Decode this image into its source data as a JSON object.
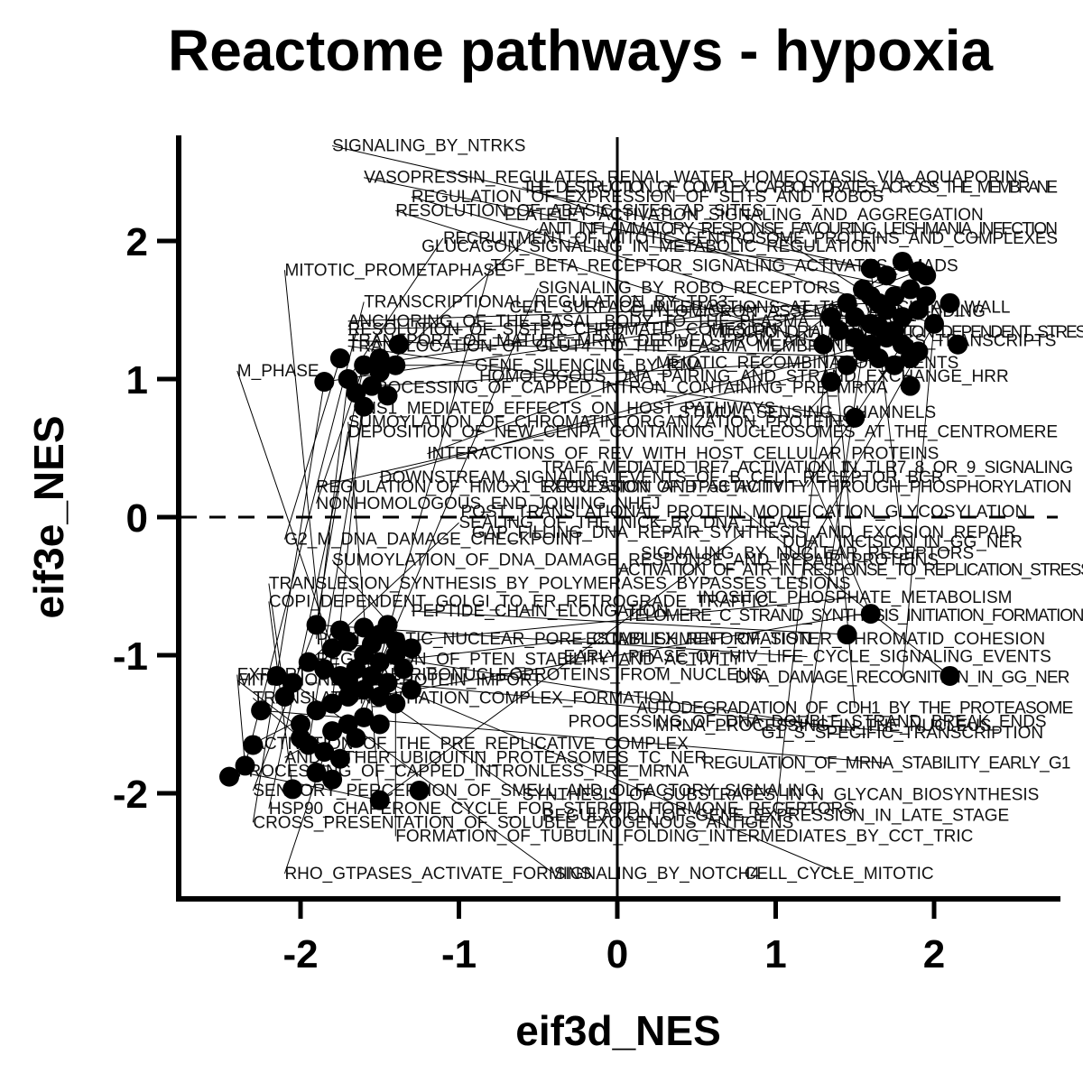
{
  "chart_data": {
    "type": "scatter",
    "title": "Reactome pathways - hypoxia",
    "xlabel": "eif3d_NES",
    "ylabel": "eif3e_NES",
    "xlim": [
      -2.75,
      2.75
    ],
    "ylim": [
      -2.75,
      2.75
    ],
    "x_ticks": [
      "-2",
      "-1",
      "0",
      "1",
      "2"
    ],
    "y_ticks": [
      "-2",
      "-1",
      "0",
      "1",
      "2"
    ],
    "reference_lines": {
      "x": 0,
      "y": 0,
      "y_style": "dashed"
    },
    "grid": false,
    "legend": "none",
    "colors": {
      "points": "#000000",
      "text": "#111111",
      "axes": "#000000"
    },
    "points": [
      {
        "x": 1.6,
        "y": 1.8
      },
      {
        "x": 1.7,
        "y": 1.75
      },
      {
        "x": 1.8,
        "y": 1.85
      },
      {
        "x": 1.9,
        "y": 1.78
      },
      {
        "x": 1.55,
        "y": 1.65
      },
      {
        "x": 1.65,
        "y": 1.55
      },
      {
        "x": 1.75,
        "y": 1.6
      },
      {
        "x": 1.85,
        "y": 1.65
      },
      {
        "x": 1.95,
        "y": 1.6
      },
      {
        "x": 1.5,
        "y": 1.45
      },
      {
        "x": 1.6,
        "y": 1.4
      },
      {
        "x": 1.7,
        "y": 1.5
      },
      {
        "x": 1.8,
        "y": 1.45
      },
      {
        "x": 1.9,
        "y": 1.5
      },
      {
        "x": 2.0,
        "y": 1.4
      },
      {
        "x": 1.4,
        "y": 1.35
      },
      {
        "x": 1.5,
        "y": 1.3
      },
      {
        "x": 1.6,
        "y": 1.25
      },
      {
        "x": 1.7,
        "y": 1.3
      },
      {
        "x": 1.8,
        "y": 1.25
      },
      {
        "x": 1.9,
        "y": 1.2
      },
      {
        "x": 1.35,
        "y": 1.45
      },
      {
        "x": 1.45,
        "y": 1.55
      },
      {
        "x": 1.55,
        "y": 1.2
      },
      {
        "x": 1.65,
        "y": 1.15
      },
      {
        "x": 1.75,
        "y": 1.1
      },
      {
        "x": 1.85,
        "y": 1.15
      },
      {
        "x": 1.45,
        "y": 1.1
      },
      {
        "x": 1.3,
        "y": 1.25
      },
      {
        "x": 2.1,
        "y": 1.55
      },
      {
        "x": 2.15,
        "y": 1.25
      },
      {
        "x": 1.85,
        "y": 0.95
      },
      {
        "x": 1.35,
        "y": 0.98
      },
      {
        "x": 1.5,
        "y": 0.72
      },
      {
        "x": 1.95,
        "y": 1.75
      },
      {
        "x": 1.6,
        "y": 1.6
      },
      {
        "x": 1.75,
        "y": 1.35
      },
      {
        "x": 1.65,
        "y": 1.38
      },
      {
        "x": -1.6,
        "y": 1.1
      },
      {
        "x": -1.5,
        "y": 1.05
      },
      {
        "x": -1.4,
        "y": 1.1
      },
      {
        "x": -1.55,
        "y": 0.95
      },
      {
        "x": -1.65,
        "y": 0.9
      },
      {
        "x": -1.45,
        "y": 0.88
      },
      {
        "x": -1.75,
        "y": 1.15
      },
      {
        "x": -1.85,
        "y": 0.98
      },
      {
        "x": -1.38,
        "y": 1.25
      },
      {
        "x": -1.6,
        "y": 0.8
      },
      {
        "x": -1.5,
        "y": 1.15
      },
      {
        "x": -1.7,
        "y": 1.0
      },
      {
        "x": -1.6,
        "y": -0.8
      },
      {
        "x": -1.5,
        "y": -0.85
      },
      {
        "x": -1.4,
        "y": -0.9
      },
      {
        "x": -1.7,
        "y": -0.9
      },
      {
        "x": -1.8,
        "y": -0.95
      },
      {
        "x": -1.6,
        "y": -1.0
      },
      {
        "x": -1.5,
        "y": -1.05
      },
      {
        "x": -1.4,
        "y": -1.0
      },
      {
        "x": -1.3,
        "y": -0.95
      },
      {
        "x": -1.65,
        "y": -1.1
      },
      {
        "x": -1.55,
        "y": -1.15
      },
      {
        "x": -1.45,
        "y": -1.2
      },
      {
        "x": -1.75,
        "y": -1.15
      },
      {
        "x": -1.85,
        "y": -1.1
      },
      {
        "x": -1.6,
        "y": -1.25
      },
      {
        "x": -1.7,
        "y": -1.3
      },
      {
        "x": -1.5,
        "y": -1.3
      },
      {
        "x": -1.4,
        "y": -1.35
      },
      {
        "x": -1.8,
        "y": -1.35
      },
      {
        "x": -1.9,
        "y": -1.4
      },
      {
        "x": -1.6,
        "y": -1.45
      },
      {
        "x": -1.7,
        "y": -1.5
      },
      {
        "x": -1.5,
        "y": -1.5
      },
      {
        "x": -1.8,
        "y": -1.55
      },
      {
        "x": -2.0,
        "y": -1.5
      },
      {
        "x": -1.95,
        "y": -1.65
      },
      {
        "x": -1.85,
        "y": -1.7
      },
      {
        "x": -1.75,
        "y": -1.75
      },
      {
        "x": -1.65,
        "y": -1.6
      },
      {
        "x": -2.1,
        "y": -1.3
      },
      {
        "x": -2.05,
        "y": -1.2
      },
      {
        "x": -2.15,
        "y": -1.15
      },
      {
        "x": -2.25,
        "y": -1.4
      },
      {
        "x": -2.3,
        "y": -1.65
      },
      {
        "x": -2.35,
        "y": -1.8
      },
      {
        "x": -2.45,
        "y": -1.88
      },
      {
        "x": -2.05,
        "y": -1.97
      },
      {
        "x": -1.9,
        "y": -1.85
      },
      {
        "x": -1.8,
        "y": -1.9
      },
      {
        "x": -1.5,
        "y": -2.05
      },
      {
        "x": -1.25,
        "y": -1.98
      },
      {
        "x": -1.55,
        "y": -0.92
      },
      {
        "x": -1.45,
        "y": -0.78
      },
      {
        "x": -1.35,
        "y": -1.1
      },
      {
        "x": -1.3,
        "y": -1.25
      },
      {
        "x": -1.95,
        "y": -1.05
      },
      {
        "x": -1.9,
        "y": -0.78
      },
      {
        "x": -1.75,
        "y": -0.82
      },
      {
        "x": -2.0,
        "y": -1.6
      },
      {
        "x": -1.7,
        "y": -1.2
      },
      {
        "x": 1.45,
        "y": -0.85
      },
      {
        "x": 1.6,
        "y": -0.7
      },
      {
        "x": 2.1,
        "y": -1.15
      }
    ],
    "point_labels": [
      {
        "text": "SIGNALING_BY_NTRKS",
        "x": -1.8,
        "y": 2.65
      },
      {
        "text": "VASOPRESSIN_REGULATES_RENAL_WATER_HOMEOSTASIS_VIA_AQUAPORINS",
        "x": -1.6,
        "y": 2.42
      },
      {
        "text": "THE_DESTRUCTION_OF_COMPLEX_CARBOHYDRATES_ACROSS_THE_MEMBRANE",
        "x": -0.6,
        "y": 2.35
      },
      {
        "text": "REGULATION_OF_EXPRESSION_OF_SLITS_AND_ROBOS",
        "x": -1.3,
        "y": 2.28
      },
      {
        "text": "RESOLUTION_OF_ABASIC_SITES_AP_SITES",
        "x": -1.4,
        "y": 2.18
      },
      {
        "text": "PLATELET_ACTIVATION_SIGNALING_AND_AGGREGATION",
        "x": 0.8,
        "y": 2.15
      },
      {
        "text": "ANTI_INFLAMMATORY_RESPONSE_FAVOURING_LEISHMANIA_INFECTION",
        "x": -0.5,
        "y": 2.05
      },
      {
        "text": "RECRUITMENT_OF_MITOTIC_CENTROSOME_PROTEINS_AND_COMPLEXES",
        "x": -1.1,
        "y": 1.98
      },
      {
        "text": "GLUCAGON_SIGNALING_IN_METABOLIC_REGULATION",
        "x": 0.2,
        "y": 1.92
      },
      {
        "text": "MITOTIC_PROMETAPHASE",
        "x": -2.1,
        "y": 1.75
      },
      {
        "text": "TGF_BETA_RECEPTOR_SIGNALING_ACTIVATES_SMADS",
        "x": -0.8,
        "y": 1.78
      },
      {
        "text": "SIGNALING_BY_ROBO_RECEPTORS",
        "x": -0.5,
        "y": 1.62
      },
      {
        "text": "TRANSCRIPTIONAL_REGULATION_BY_TP53",
        "x": -1.6,
        "y": 1.52
      },
      {
        "text": "CELL_SURFACE_INTERACTIONS_AT_THE_VASCULAR_WALL",
        "x": 0.9,
        "y": 1.48
      },
      {
        "text": "CHYLOMICRON_ASSEMBLY_AND_BINDING",
        "x": 1.2,
        "y": 1.45
      },
      {
        "text": "ANCHORING_OF_THE_BASAL_BODY_TO_THE_PLASMA_MEMBRANE",
        "x": -1.7,
        "y": 1.38
      },
      {
        "text": "RESOLUTION_OF_SISTER_CHROMATID_COHESION",
        "x": -1.7,
        "y": 1.32
      },
      {
        "text": "MITOCHONDRIAL_TRANSLATION_DEPENDENT_STRESS",
        "x": 1.8,
        "y": 1.3
      },
      {
        "text": "TRANSPORT_OF_MATURE_MRNA_DERIVED_FROM_AN_INTRONLESS_TRANSCRIPTS",
        "x": -1.7,
        "y": 1.24
      },
      {
        "text": "TRANSLOCATION_OF_GLUT4_TO_THE_PLASMA_MEMBRANE",
        "x": -1.7,
        "y": 1.2
      },
      {
        "text": "GENE_SILENCING_BY_RNA",
        "x": -0.9,
        "y": 1.06
      },
      {
        "text": "MEIOTIC_RECOMBINATION_EVENTS",
        "x": 1.2,
        "y": 1.08
      },
      {
        "text": "M_PHASE",
        "x": -2.4,
        "y": 1.02
      },
      {
        "text": "HOMOLOGOUS_DNA_PAIRING_AND_STRAND_EXCHANGE_HRR",
        "x": 0.8,
        "y": 0.98
      },
      {
        "text": "PROCESSING_OF_CAPPED_INTRON_CONTAINING_PRE_MRNA",
        "x": -1.6,
        "y": 0.9
      },
      {
        "text": "NS1_MEDIATED_EFFECTS_ON_HOST_PATHWAYS",
        "x": -1.6,
        "y": 0.75
      },
      {
        "text": "STIMULI_SENSING_CHANNELS",
        "x": 1.2,
        "y": 0.72
      },
      {
        "text": "SUMOYLATION_OF_CHROMATIN_ORGANIZATION_PROTEINS",
        "x": -1.7,
        "y": 0.65
      },
      {
        "text": "DEPOSITION_OF_NEW_CENPA_CONTAINING_NUCLEOSOMES_AT_THE_CENTROMERE",
        "x": -1.7,
        "y": 0.58
      },
      {
        "text": "INTERACTIONS_OF_REV_WITH_HOST_CELLULAR_PROTEINS",
        "x": -1.2,
        "y": 0.42
      },
      {
        "text": "TRAF6_MEDIATED_IRF7_ACTIVATION_IN_TLR7_8_OR_9_SIGNALING",
        "x": 1.2,
        "y": 0.32
      },
      {
        "text": "DOWNSTREAM_SIGNALING_EVENTS_OF_B_CELL_RECEPTOR_BCR",
        "x": -1.5,
        "y": 0.25
      },
      {
        "text": "REGULATION_OF_HMOX1_EXPRESSION_AND_ACTIVITY",
        "x": -1.9,
        "y": 0.18
      },
      {
        "text": "REGULATION_OF_TP53_ACTIVITY_THROUGH_PHOSPHORYLATION",
        "x": 1.2,
        "y": 0.18
      },
      {
        "text": "NONHOMOLOGOUS_END_JOINING_NHEJ",
        "x": -1.9,
        "y": 0.06
      },
      {
        "text": "POST_TRANSLATIONAL_PROTEIN_MODIFICATION_GLYCOSYLATION",
        "x": 0.8,
        "y": 0.0
      },
      {
        "text": "SEALING_OF_THE_NICK_BY_DNA_LIGASE",
        "x": -1.0,
        "y": -0.08
      },
      {
        "text": "GAP_FILLING_DNA_REPAIR_SYNTHESIS_AND_EXCISION_REPAIR",
        "x": 0.8,
        "y": -0.15
      },
      {
        "text": "G2_M_DNA_DAMAGE_CHECKPOINT",
        "x": -2.1,
        "y": -0.2
      },
      {
        "text": "DUAL_INCISION_IN_GG_NER",
        "x": 1.8,
        "y": -0.22
      },
      {
        "text": "SUMOYLATION_OF_DNA_DAMAGE_RESPONSE_AND_REPAIR_PROTEINS",
        "x": -1.8,
        "y": -0.35
      },
      {
        "text": "SIGNALING_BY_NUCLEAR_RECEPTORS",
        "x": 1.2,
        "y": -0.3
      },
      {
        "text": "ACTIVATION_OF_ATR_IN_RESPONSE_TO_REPLICATION_STRESS",
        "x": 1.5,
        "y": -0.42
      },
      {
        "text": "TRANSLESION_SYNTHESIS_BY_POLYMERASES_BYPASSES_LESIONS",
        "x": -2.2,
        "y": -0.52
      },
      {
        "text": "COPI_DEPENDENT_GOLGI_TO_ER_RETROGRADE_TRAFFIC",
        "x": -2.2,
        "y": -0.65
      },
      {
        "text": "INOSITOL_PHOSPHATE_METABOLISM",
        "x": 1.5,
        "y": -0.62
      },
      {
        "text": "PEPTIDE_CHAIN_ELONGATION",
        "x": -1.3,
        "y": -0.72
      },
      {
        "text": "TELOMERE_C_STRAND_SYNTHESIS_INITIATION_FORMATION",
        "x": 1.5,
        "y": -0.75
      },
      {
        "text": "POSTMITOTIC_NUCLEAR_PORE_COMPLEX_REFORMATION",
        "x": -1.9,
        "y": -0.92
      },
      {
        "text": "ESTABLISHMENT_OF_SISTER_CHROMATID_COHESION",
        "x": -0.2,
        "y": -0.92
      },
      {
        "text": "REGULATION_OF_PTEN_STABILITY_AND_ACTIVITY",
        "x": -1.9,
        "y": -1.07
      },
      {
        "text": "EARLY_PHASE_OF_HIV_LIFE_CYCLE_SIGNALING_EVENTS",
        "x": 1.2,
        "y": -1.05
      },
      {
        "text": "MITOCHONDRIAL_PROTEIN_IMPORT",
        "x": -2.4,
        "y": -1.22
      },
      {
        "text": "EXPORT_OF_VIRAL_RIBONUCLEOPROTEINS_FROM_NUCLEUS",
        "x": -2.4,
        "y": -1.18
      },
      {
        "text": "DNA_DAMAGE_RECOGNITION_IN_GG_NER",
        "x": 1.8,
        "y": -1.2
      },
      {
        "text": "TRANSLATION_INITIATION_COMPLEX_FORMATION",
        "x": -2.3,
        "y": -1.35
      },
      {
        "text": "AUTODEGRADATION_OF_CDH1_BY_THE_PROTEASOME",
        "x": 1.5,
        "y": -1.42
      },
      {
        "text": "PROCESSING_OF_DNA_DOUBLE_STRAND_BREAK_ENDS",
        "x": 1.2,
        "y": -1.52
      },
      {
        "text": "MRNA_PROCESSING_IN_THE_NUCLEUS",
        "x": 1.3,
        "y": -1.55
      },
      {
        "text": "G1_S_SPECIFIC_TRANSCRIPTION",
        "x": 1.8,
        "y": -1.6
      },
      {
        "text": "ACTIVATION_OF_THE_PRE_REPLICATIVE_COMPLEX",
        "x": -2.3,
        "y": -1.68
      },
      {
        "text": "AND_OTHER_UBIQUITIN_PROTEASOMES_TC_NER",
        "x": -2.1,
        "y": -1.78
      },
      {
        "text": "REGULATION_OF_MRNA_STABILITY_EARLY_G1",
        "x": 1.7,
        "y": -1.82
      },
      {
        "text": "PROCESSING_OF_CAPPED_INTRONLESS_PRE_MRNA",
        "x": -2.4,
        "y": -1.88
      },
      {
        "text": "SENSORY_PERCEPTION_OF_SMELL_AND_OLFACTORY_SIGNALING",
        "x": -2.3,
        "y": -2.02
      },
      {
        "text": "HSP90_CHAPERONE_CYCLE_FOR_STEROID_HORMONE_RECEPTORS",
        "x": -2.2,
        "y": -2.15
      },
      {
        "text": "CROSS_PRESENTATION_OF_SOLUBLE_EXOGENOUS_ANTIGENS",
        "x": -2.3,
        "y": -2.25
      },
      {
        "text": "FORMATION_OF_TUBULIN_FOLDING_INTERMEDIATES_BY_CCT_TRIC",
        "x": -1.4,
        "y": -2.35
      },
      {
        "text": "REGULATION_OF_GENE_EXPRESSION_IN_LATE_STAGE",
        "x": 1.0,
        "y": -2.2
      },
      {
        "text": "SYNTHESIS_OF_SUBSTRATES_IN_N_GLYCAN_BIOSYNTHESIS",
        "x": -0.6,
        "y": -2.05
      },
      {
        "text": "RHO_GTPASES_ACTIVATE_FORMINS",
        "x": -2.1,
        "y": -2.62
      },
      {
        "text": "SIGNALING_BY_NOTCH4",
        "x": -0.4,
        "y": -2.62
      },
      {
        "text": "CELL_CYCLE_MITOTIC",
        "x": 1.4,
        "y": -2.62
      }
    ]
  }
}
